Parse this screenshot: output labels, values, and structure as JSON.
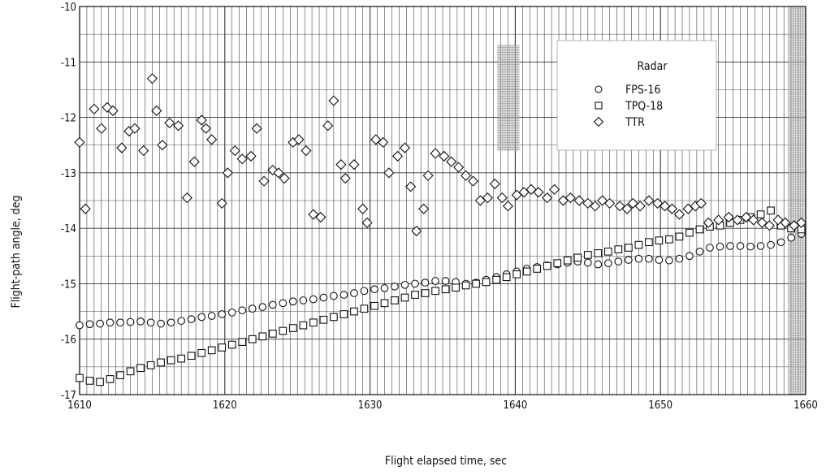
{
  "chart_data": {
    "type": "scatter",
    "xlabel": "Flight elapsed time,  sec",
    "ylabel": "Flight-path angle, deg",
    "xlim": [
      1610,
      1660
    ],
    "ylim": [
      -17,
      -10
    ],
    "xticks": [
      1610,
      1620,
      1630,
      1640,
      1650,
      1660
    ],
    "xtick_labels": [
      "1610",
      "1620",
      "1630",
      "1640",
      "1650",
      "1660"
    ],
    "yticks": [
      -10,
      -11,
      -12,
      -13,
      -14,
      -15,
      -16,
      -17
    ],
    "ytick_labels": [
      "-10",
      "-11",
      "-12",
      "-13",
      "-14",
      "-15",
      "-16",
      "-17"
    ],
    "grid": true,
    "legend": {
      "title": "Radar",
      "placement": "top-right"
    },
    "series": [
      {
        "name": "FPS-16",
        "marker": "circle",
        "color": "#111111",
        "x": [
          1610.0,
          1610.7,
          1611.4,
          1612.1,
          1612.8,
          1613.5,
          1614.2,
          1614.9,
          1615.6,
          1616.3,
          1617.0,
          1617.7,
          1618.4,
          1619.1,
          1619.8,
          1620.5,
          1621.2,
          1621.9,
          1622.6,
          1623.3,
          1624.0,
          1624.7,
          1625.4,
          1626.1,
          1626.8,
          1627.5,
          1628.2,
          1628.9,
          1629.6,
          1630.3,
          1631.0,
          1631.7,
          1632.4,
          1633.1,
          1633.8,
          1634.5,
          1635.2,
          1635.9,
          1636.6,
          1637.3,
          1638.0,
          1638.7,
          1639.4,
          1640.1,
          1640.8,
          1641.5,
          1642.2,
          1642.9,
          1643.6,
          1644.3,
          1645.0,
          1645.7,
          1646.4,
          1647.1,
          1647.8,
          1648.5,
          1649.2,
          1649.9,
          1650.6,
          1651.3,
          1652.0,
          1652.7,
          1653.4,
          1654.1,
          1654.8,
          1655.5,
          1656.2,
          1656.9,
          1657.6,
          1658.3,
          1659.0,
          1659.7
        ],
        "y": [
          -15.75,
          -15.73,
          -15.72,
          -15.7,
          -15.7,
          -15.69,
          -15.68,
          -15.7,
          -15.72,
          -15.7,
          -15.67,
          -15.64,
          -15.6,
          -15.58,
          -15.55,
          -15.52,
          -15.48,
          -15.45,
          -15.42,
          -15.38,
          -15.35,
          -15.32,
          -15.3,
          -15.28,
          -15.25,
          -15.22,
          -15.2,
          -15.17,
          -15.13,
          -15.1,
          -15.08,
          -15.05,
          -15.02,
          -15.0,
          -14.98,
          -14.95,
          -14.95,
          -14.97,
          -15.0,
          -14.98,
          -14.93,
          -14.88,
          -14.83,
          -14.78,
          -14.73,
          -14.7,
          -14.67,
          -14.65,
          -14.62,
          -14.6,
          -14.62,
          -14.65,
          -14.63,
          -14.6,
          -14.57,
          -14.55,
          -14.55,
          -14.57,
          -14.58,
          -14.55,
          -14.5,
          -14.42,
          -14.35,
          -14.33,
          -14.32,
          -14.32,
          -14.33,
          -14.32,
          -14.3,
          -14.25,
          -14.17,
          -14.1
        ]
      },
      {
        "name": "TPQ-18",
        "marker": "square",
        "color": "#111111",
        "x": [
          1610.0,
          1610.7,
          1611.4,
          1612.1,
          1612.8,
          1613.5,
          1614.2,
          1614.9,
          1615.6,
          1616.3,
          1617.0,
          1617.7,
          1618.4,
          1619.1,
          1619.8,
          1620.5,
          1621.2,
          1621.9,
          1622.6,
          1623.3,
          1624.0,
          1624.7,
          1625.4,
          1626.1,
          1626.8,
          1627.5,
          1628.2,
          1628.9,
          1629.6,
          1630.3,
          1631.0,
          1631.7,
          1632.4,
          1633.1,
          1633.8,
          1634.5,
          1635.2,
          1635.9,
          1636.6,
          1637.3,
          1638.0,
          1638.7,
          1639.4,
          1640.1,
          1640.8,
          1641.5,
          1642.2,
          1642.9,
          1643.6,
          1644.3,
          1645.0,
          1645.7,
          1646.4,
          1647.1,
          1647.8,
          1648.5,
          1649.2,
          1649.9,
          1650.6,
          1651.3,
          1652.0,
          1652.7,
          1653.4,
          1654.1,
          1654.8,
          1655.5,
          1656.2,
          1656.9,
          1657.6,
          1658.3,
          1659.0,
          1659.7
        ],
        "y": [
          -16.7,
          -16.75,
          -16.77,
          -16.72,
          -16.65,
          -16.58,
          -16.52,
          -16.47,
          -16.42,
          -16.38,
          -16.35,
          -16.3,
          -16.25,
          -16.2,
          -16.15,
          -16.1,
          -16.05,
          -16.0,
          -15.95,
          -15.9,
          -15.85,
          -15.8,
          -15.75,
          -15.7,
          -15.65,
          -15.6,
          -15.55,
          -15.5,
          -15.45,
          -15.4,
          -15.35,
          -15.3,
          -15.25,
          -15.2,
          -15.17,
          -15.13,
          -15.1,
          -15.07,
          -15.03,
          -15.0,
          -14.97,
          -14.93,
          -14.88,
          -14.83,
          -14.78,
          -14.73,
          -14.68,
          -14.63,
          -14.58,
          -14.53,
          -14.48,
          -14.45,
          -14.42,
          -14.38,
          -14.35,
          -14.3,
          -14.25,
          -14.22,
          -14.2,
          -14.15,
          -14.08,
          -14.02,
          -13.97,
          -13.95,
          -13.9,
          -13.85,
          -13.8,
          -13.75,
          -13.68,
          -13.95,
          -14.0,
          -14.02
        ]
      },
      {
        "name": "TTR",
        "marker": "diamond",
        "color": "#111111",
        "x": [
          1610.0,
          1610.4,
          1611.0,
          1611.5,
          1611.9,
          1612.3,
          1612.9,
          1613.4,
          1613.8,
          1614.4,
          1615.0,
          1615.3,
          1615.7,
          1616.2,
          1616.8,
          1617.4,
          1617.9,
          1618.4,
          1618.7,
          1619.1,
          1619.8,
          1620.2,
          1620.7,
          1621.2,
          1621.8,
          1622.2,
          1622.7,
          1623.3,
          1623.7,
          1624.1,
          1624.7,
          1625.1,
          1625.6,
          1626.1,
          1626.6,
          1627.1,
          1627.5,
          1628.0,
          1628.3,
          1628.9,
          1629.5,
          1629.8,
          1630.4,
          1630.9,
          1631.3,
          1631.9,
          1632.4,
          1632.8,
          1633.2,
          1633.7,
          1634.0,
          1634.5,
          1635.1,
          1635.6,
          1636.1,
          1636.6,
          1637.1,
          1637.6,
          1638.1,
          1638.6,
          1639.1,
          1639.5,
          1640.1,
          1640.6,
          1641.1,
          1641.6,
          1642.2,
          1642.7,
          1643.3,
          1643.8,
          1644.4,
          1645.0,
          1645.5,
          1646.0,
          1646.5,
          1647.2,
          1647.7,
          1648.1,
          1648.6,
          1649.2,
          1649.8,
          1650.3,
          1650.8,
          1651.3,
          1651.9,
          1652.4,
          1652.8,
          1653.3,
          1654.0,
          1654.7,
          1655.3,
          1655.9,
          1656.4,
          1657.0,
          1657.5,
          1658.1,
          1658.6,
          1659.2,
          1659.7
        ],
        "y": [
          -12.45,
          -13.65,
          -11.85,
          -12.2,
          -11.82,
          -11.88,
          -12.55,
          -12.25,
          -12.2,
          -12.6,
          -11.3,
          -11.88,
          -12.5,
          -12.1,
          -12.15,
          -13.45,
          -12.8,
          -12.05,
          -12.2,
          -12.4,
          -13.55,
          -13.0,
          -12.6,
          -12.75,
          -12.7,
          -12.2,
          -13.15,
          -12.95,
          -13.0,
          -13.1,
          -12.45,
          -12.4,
          -12.6,
          -13.75,
          -13.8,
          -12.15,
          -11.7,
          -12.85,
          -13.1,
          -12.85,
          -13.65,
          -13.9,
          -12.4,
          -12.45,
          -13.0,
          -12.7,
          -12.55,
          -13.25,
          -14.05,
          -13.65,
          -13.05,
          -12.65,
          -12.7,
          -12.8,
          -12.9,
          -13.05,
          -13.15,
          -13.5,
          -13.45,
          -13.2,
          -13.45,
          -13.6,
          -13.4,
          -13.35,
          -13.3,
          -13.35,
          -13.45,
          -13.3,
          -13.5,
          -13.45,
          -13.5,
          -13.55,
          -13.6,
          -13.5,
          -13.55,
          -13.6,
          -13.65,
          -13.55,
          -13.6,
          -13.5,
          -13.55,
          -13.6,
          -13.65,
          -13.75,
          -13.65,
          -13.6,
          -13.55,
          -13.9,
          -13.85,
          -13.8,
          -13.85,
          -13.8,
          -13.85,
          -13.9,
          -13.95,
          -13.85,
          -13.9,
          -13.95,
          -13.9
        ]
      }
    ]
  }
}
